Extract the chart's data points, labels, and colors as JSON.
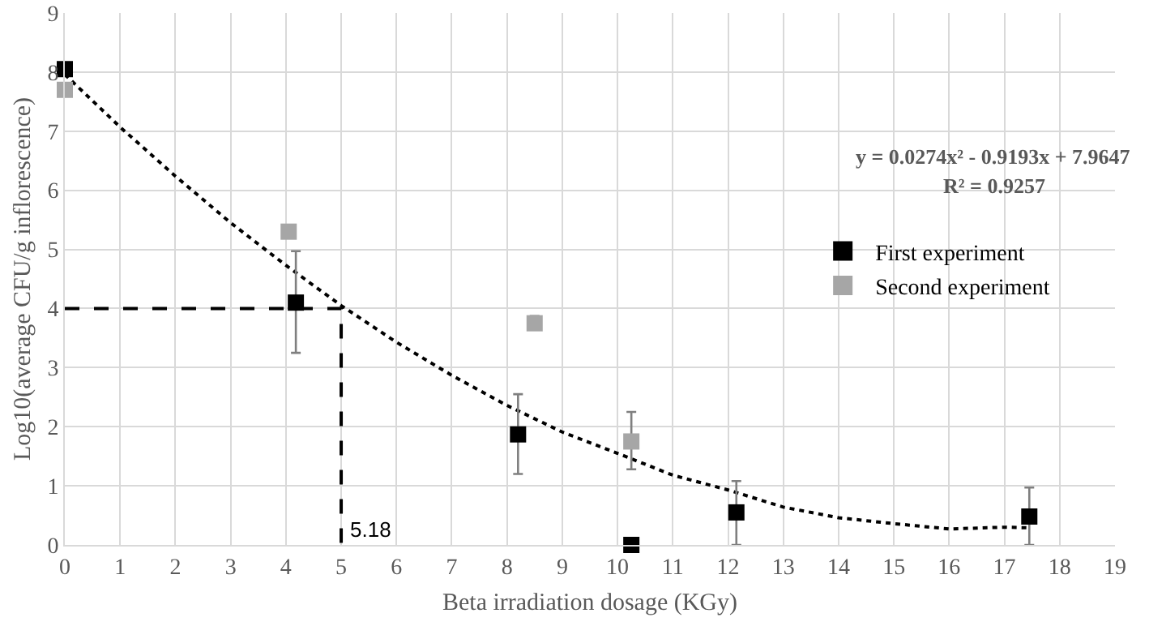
{
  "chart_data": {
    "type": "scatter",
    "xlabel": "Beta irradiation dosage (KGy)",
    "ylabel": "Log10(average CFU/g inflorescence)",
    "xlim": [
      0,
      19
    ],
    "xticks": [
      0,
      1,
      2,
      3,
      4,
      5,
      6,
      7,
      8,
      9,
      10,
      11,
      12,
      13,
      14,
      15,
      16,
      17,
      18,
      19
    ],
    "ylim": [
      0,
      9
    ],
    "yticks": [
      0,
      1,
      2,
      3,
      4,
      5,
      6,
      7,
      8,
      9
    ],
    "grid": true,
    "legend": "right",
    "series": [
      {
        "name": "First experiment",
        "marker": "square",
        "color": "#000000",
        "x": [
          0,
          4.18,
          8.2,
          10.25,
          12.15,
          17.45
        ],
        "values": [
          8.05,
          4.1,
          1.87,
          0,
          0.55,
          0.48
        ],
        "errors": [
          null,
          [
            3.25,
            4.97
          ],
          [
            1.2,
            2.55
          ],
          null,
          [
            0,
            1.08
          ],
          [
            0,
            0.97
          ]
        ]
      },
      {
        "name": "Second experiment",
        "marker": "square",
        "color": "#a6a6a6",
        "x": [
          0,
          4.05,
          8.5,
          10.25
        ],
        "values": [
          7.7,
          5.3,
          3.75,
          1.75
        ],
        "errors": [
          null,
          null,
          [
            3.65,
            3.87
          ],
          [
            1.28,
            2.25
          ]
        ]
      },
      {
        "type": "line",
        "color": "#000000",
        "line_style": "dotted",
        "x": [
          0,
          1,
          2,
          3,
          4,
          5,
          6,
          7,
          8,
          9,
          10,
          11,
          12,
          13,
          14,
          15,
          16,
          17,
          17.45
        ],
        "values": [
          7.96,
          7.07,
          6.24,
          5.45,
          4.73,
          4.05,
          3.43,
          2.87,
          2.36,
          1.91,
          1.55,
          1.18,
          0.93,
          0.64,
          0.46,
          0.36,
          0.27,
          0.3,
          0.29
        ]
      },
      {
        "type": "line",
        "color": "#000000",
        "line_style": "dashed",
        "x": [
          0,
          5,
          5
        ],
        "values": [
          4,
          4,
          0
        ]
      }
    ],
    "annotations": [
      {
        "text": "5.18",
        "x": 5,
        "y": 0
      },
      "y = 0.0274x² - 0.9193x + 7.9647",
      "R² = 0.9257"
    ]
  }
}
